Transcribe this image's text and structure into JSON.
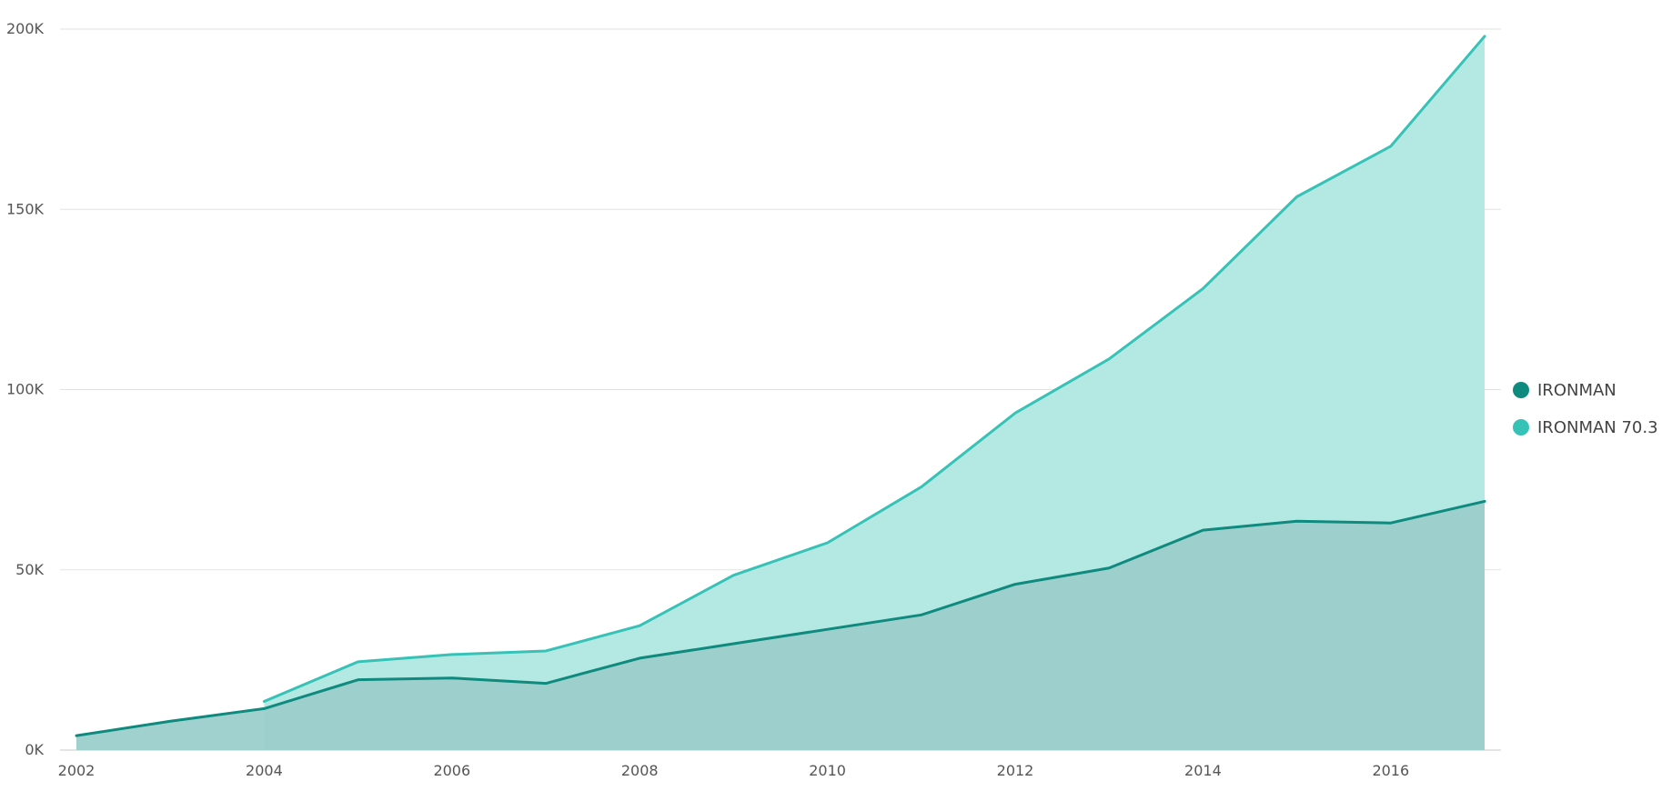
{
  "chart_data": {
    "type": "area",
    "title": "",
    "xlabel": "",
    "ylabel": "",
    "x": [
      2002,
      2003,
      2004,
      2005,
      2006,
      2007,
      2008,
      2009,
      2010,
      2011,
      2012,
      2013,
      2014,
      2015,
      2016,
      2017
    ],
    "xticks": [
      "2002",
      "2004",
      "2006",
      "2008",
      "2010",
      "2012",
      "2014",
      "2016"
    ],
    "yticks": [
      0,
      50000,
      100000,
      150000,
      200000
    ],
    "ytick_labels": [
      "0K",
      "50K",
      "100K",
      "150K",
      "200K"
    ],
    "ylim": [
      0,
      200000
    ],
    "grid": true,
    "legend_position": "right",
    "series": [
      {
        "name": "IRONMAN",
        "color": "#0e8a7f",
        "fill": "#9ccfcb",
        "values": [
          4000,
          8000,
          11500,
          19500,
          20000,
          18500,
          25500,
          29500,
          33500,
          37500,
          46000,
          50500,
          61000,
          63500,
          63000,
          69000
        ]
      },
      {
        "name": "IRONMAN 70.3",
        "color": "#36c2b6",
        "fill": "#b0e7e1",
        "values": [
          null,
          null,
          13500,
          24500,
          26500,
          27500,
          34500,
          48500,
          57500,
          73000,
          93500,
          108500,
          128000,
          153500,
          167500,
          198000
        ]
      }
    ]
  }
}
